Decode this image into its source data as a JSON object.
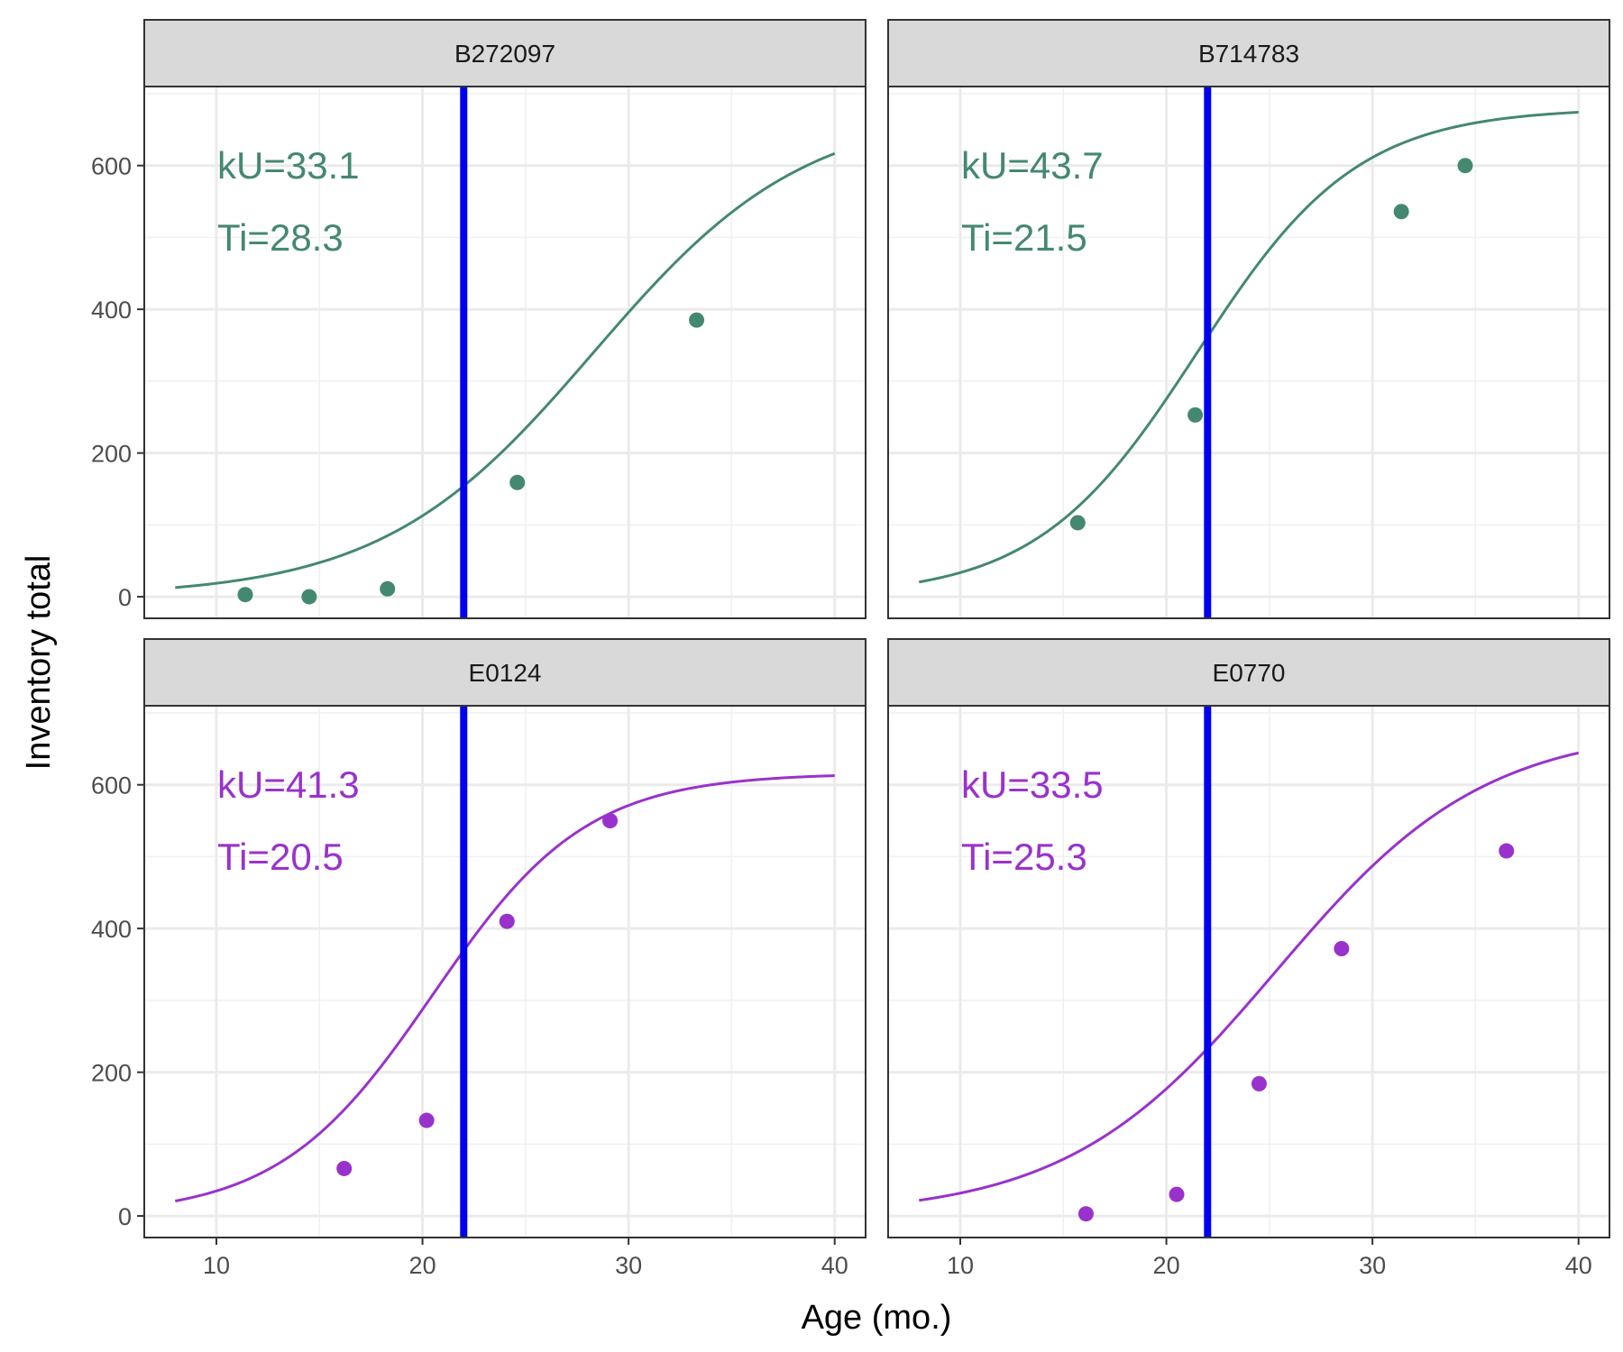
{
  "chart_data": {
    "type": "scatter",
    "xlabel": "Age (mo.)",
    "ylabel": "Inventory total",
    "xlim": [
      6.5,
      41.5
    ],
    "ylim": [
      -30,
      710
    ],
    "x_ticks": [
      10,
      20,
      30,
      40
    ],
    "y_ticks": [
      0,
      200,
      400,
      600
    ],
    "reference_line_x": 22,
    "reference_line_color": "#0000ee",
    "grid": true,
    "facets": [
      {
        "label": "B272097",
        "color": "#448870",
        "kU_label": "kU=33.1",
        "Ti_label": "Ti=28.3",
        "kU": 33.1,
        "Ti": 28.3,
        "asymptote": 680,
        "points": [
          {
            "x": 11.4,
            "y": 3
          },
          {
            "x": 14.5,
            "y": 0
          },
          {
            "x": 18.3,
            "y": 11
          },
          {
            "x": 24.6,
            "y": 159
          },
          {
            "x": 33.3,
            "y": 385
          }
        ]
      },
      {
        "label": "B714783",
        "color": "#448870",
        "kU_label": "kU=43.7",
        "Ti_label": "Ti=21.5",
        "kU": 43.7,
        "Ti": 21.5,
        "asymptote": 680,
        "points": [
          {
            "x": 15.7,
            "y": 103
          },
          {
            "x": 21.4,
            "y": 253
          },
          {
            "x": 31.4,
            "y": 536
          },
          {
            "x": 34.5,
            "y": 600
          }
        ]
      },
      {
        "label": "E0124",
        "color": "#9932cc",
        "kU_label": "kU=41.3",
        "Ti_label": "Ti=20.5",
        "kU": 41.3,
        "Ti": 20.5,
        "asymptote": 616,
        "points": [
          {
            "x": 16.2,
            "y": 66
          },
          {
            "x": 20.2,
            "y": 133
          },
          {
            "x": 24.1,
            "y": 410
          },
          {
            "x": 29.1,
            "y": 550
          }
        ]
      },
      {
        "label": "E0770",
        "color": "#9932cc",
        "kU_label": "kU=33.5",
        "Ti_label": "Ti=25.3",
        "kU": 33.5,
        "Ti": 25.3,
        "asymptote": 680,
        "points": [
          {
            "x": 16.1,
            "y": 3
          },
          {
            "x": 20.5,
            "y": 30
          },
          {
            "x": 24.5,
            "y": 184
          },
          {
            "x": 28.5,
            "y": 372
          },
          {
            "x": 36.5,
            "y": 508
          }
        ]
      }
    ]
  }
}
